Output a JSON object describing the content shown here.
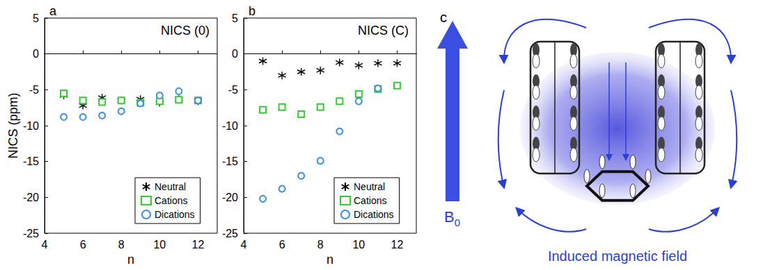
{
  "chart_data": [
    {
      "type": "scatter",
      "panel_label": "a",
      "title": "NICS (0)",
      "x_label": "n",
      "y_label": "NICS (ppm)",
      "x": [
        5,
        6,
        7,
        8,
        9,
        10,
        11,
        12
      ],
      "xlim": [
        4,
        13
      ],
      "xticks": [
        4,
        6,
        8,
        10,
        12
      ],
      "ylim": [
        -25,
        5
      ],
      "yticks": [
        -25,
        -20,
        -15,
        -10,
        -5,
        0,
        5
      ],
      "legend": "lower right",
      "grid": false,
      "series": [
        {
          "name": "Neutral",
          "color": "#000000",
          "marker": "asterisk",
          "values": [
            -5.8,
            -7.2,
            -6.1,
            -6.5,
            -6.3,
            -6.8,
            -6.3,
            -6.6
          ]
        },
        {
          "name": "Cations",
          "color": "#33cc33",
          "marker": "square",
          "values": [
            -5.5,
            -6.5,
            -6.7,
            -6.5,
            -6.8,
            -6.6,
            -6.4,
            -6.5
          ]
        },
        {
          "name": "Dications",
          "color": "#3a8fe0",
          "marker": "circle",
          "values": [
            -8.8,
            -8.8,
            -8.6,
            -8.0,
            -6.9,
            -5.8,
            -5.2,
            -6.5
          ]
        }
      ]
    },
    {
      "type": "scatter",
      "panel_label": "b",
      "title": "NICS (C)",
      "x_label": "n",
      "x": [
        5,
        6,
        7,
        8,
        9,
        10,
        11,
        12
      ],
      "xlim": [
        4,
        13
      ],
      "xticks": [
        4,
        6,
        8,
        10,
        12
      ],
      "ylim": [
        -25,
        5
      ],
      "yticks": [
        -25,
        -20,
        -15,
        -10,
        -5,
        0,
        5
      ],
      "legend": "lower right",
      "grid": false,
      "series": [
        {
          "name": "Neutral",
          "color": "#000000",
          "marker": "asterisk",
          "values": [
            -1.0,
            -3.0,
            -2.5,
            -2.3,
            -1.2,
            -1.6,
            -1.3,
            -1.3
          ]
        },
        {
          "name": "Cations",
          "color": "#33cc33",
          "marker": "square",
          "values": [
            -7.8,
            -7.4,
            -8.4,
            -7.4,
            -6.6,
            -5.6,
            -4.9,
            -4.4
          ]
        },
        {
          "name": "Dications",
          "color": "#3a8fe0",
          "marker": "circle",
          "values": [
            -20.2,
            -18.8,
            -17.0,
            -14.9,
            -10.8,
            -6.6,
            -4.8,
            null
          ]
        }
      ]
    }
  ],
  "diagram": {
    "panel_label": "c",
    "field_symbol": "B",
    "field_subscript": "0",
    "caption": "Induced magnetic field"
  }
}
